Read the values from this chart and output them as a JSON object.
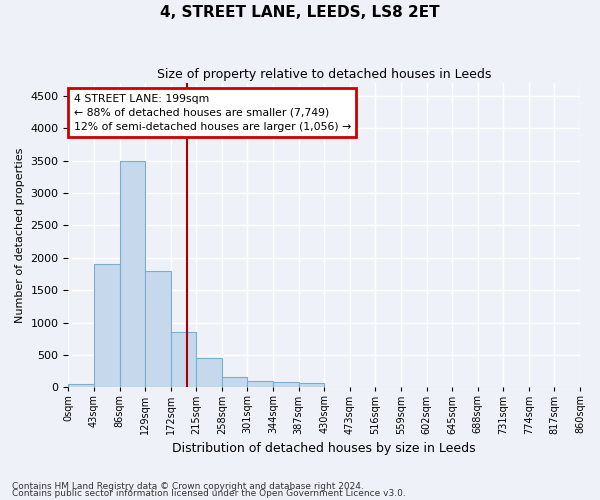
{
  "title": "4, STREET LANE, LEEDS, LS8 2ET",
  "subtitle": "Size of property relative to detached houses in Leeds",
  "xlabel": "Distribution of detached houses by size in Leeds",
  "ylabel": "Number of detached properties",
  "bar_values": [
    50,
    1900,
    3500,
    1800,
    850,
    450,
    160,
    100,
    80,
    70,
    0,
    0,
    0,
    0,
    0,
    0,
    0,
    0,
    0,
    0
  ],
  "bar_labels": [
    "0sqm",
    "43sqm",
    "86sqm",
    "129sqm",
    "172sqm",
    "215sqm",
    "258sqm",
    "301sqm",
    "344sqm",
    "387sqm",
    "430sqm",
    "473sqm",
    "516sqm",
    "559sqm",
    "602sqm",
    "645sqm",
    "688sqm",
    "731sqm",
    "774sqm",
    "817sqm",
    "860sqm"
  ],
  "bar_color": "#c6d9ec",
  "bar_edge_color": "#7aaed0",
  "vline_color": "#aa0000",
  "annotation_box_color": "#cc0000",
  "annotation_lines": [
    "4 STREET LANE: 199sqm",
    "← 88% of detached houses are smaller (7,749)",
    "12% of semi-detached houses are larger (1,056) →"
  ],
  "ylim": [
    0,
    4700
  ],
  "yticks": [
    0,
    500,
    1000,
    1500,
    2000,
    2500,
    3000,
    3500,
    4000,
    4500
  ],
  "footnote1": "Contains HM Land Registry data © Crown copyright and database right 2024.",
  "footnote2": "Contains public sector information licensed under the Open Government Licence v3.0.",
  "bg_color": "#eef2f8",
  "grid_color": "#ffffff"
}
